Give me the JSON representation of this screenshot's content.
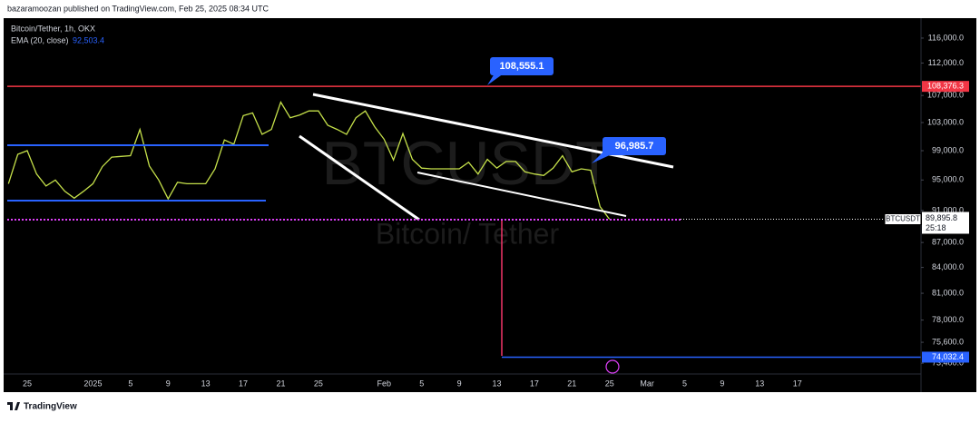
{
  "header": "bazaramoozan published on TradingView.com, Feb 25, 2025 08:34 UTC",
  "footer": "TradingView",
  "chart_data": {
    "type": "line",
    "symbol_title": "Bitcoin/Tether, 1h, OKX",
    "indicator": {
      "name": "EMA (20, close)",
      "value": {
        "value": 92503.4,
        "label": "92,503.4"
      }
    },
    "watermark": {
      "symbol": "BTCUSDT",
      "name": "Bitcoin/ Tether"
    },
    "log_scale": true,
    "grid": false,
    "ylim": [
      72300,
      119300
    ],
    "yticks": [
      {
        "value": 116000,
        "label": "116,000.0"
      },
      {
        "value": 112000,
        "label": "112,000.0"
      },
      {
        "value": 107000,
        "label": "107,000.0"
      },
      {
        "value": 103000,
        "label": "103,000.0"
      },
      {
        "value": 99000,
        "label": "99,000.0"
      },
      {
        "value": 95000,
        "label": "95,000.0"
      },
      {
        "value": 91000,
        "label": "91,000.0"
      },
      {
        "value": 87000,
        "label": "87,000.0"
      },
      {
        "value": 84000,
        "label": "84,000.0"
      },
      {
        "value": 81000,
        "label": "81,000.0"
      },
      {
        "value": 78000,
        "label": "78,000.0"
      },
      {
        "value": 75600,
        "label": "75,600.0"
      },
      {
        "value": 73400,
        "label": "73,400.0"
      }
    ],
    "categories": [
      null,
      null,
      "25",
      null,
      null,
      null,
      null,
      null,
      null,
      "2025",
      null,
      null,
      null,
      "5",
      null,
      null,
      null,
      "9",
      null,
      null,
      null,
      "13",
      null,
      null,
      null,
      "17",
      null,
      null,
      null,
      "21",
      null,
      null,
      null,
      "25",
      null,
      null,
      null,
      null,
      null,
      null,
      "Feb",
      null,
      null,
      null,
      "5",
      null,
      null,
      null,
      "9",
      null,
      null,
      null,
      "13",
      null,
      null,
      null,
      "17",
      null,
      null,
      null,
      "21",
      null,
      null,
      null,
      "25",
      null,
      null,
      null,
      "Mar",
      null,
      null,
      null,
      "5",
      null,
      null,
      null,
      "9",
      null,
      null,
      null,
      "13",
      null,
      null,
      null,
      "17",
      null,
      null,
      null,
      null,
      null,
      null,
      null,
      null,
      null,
      null,
      null,
      null,
      null
    ],
    "series": [
      {
        "name": "BTCUSDT",
        "color": "#c5e04a",
        "values": [
          94500,
          98500,
          99000,
          95800,
          94200,
          95000,
          93500,
          92600,
          93500,
          94500,
          96800,
          98100,
          98200,
          98300,
          102000,
          96900,
          95000,
          92500,
          94700,
          94500,
          94500,
          94500,
          96500,
          100500,
          99900,
          104000,
          104400,
          101300,
          102000,
          106000,
          103700,
          104100,
          104700,
          104700,
          102600,
          102000,
          101300,
          103700,
          104700,
          102400,
          100600,
          97700,
          101400,
          97800,
          96600,
          96500,
          96500,
          96500,
          96500,
          97400,
          95800,
          97800,
          96600,
          97500,
          97500,
          96100,
          95800,
          95600,
          96600,
          98300,
          96100,
          96500,
          96300,
          91500,
          89895.8,
          null,
          null,
          null,
          null,
          null,
          null,
          null,
          null,
          null,
          null,
          null,
          null,
          null,
          null,
          null,
          null,
          null,
          null,
          null,
          null,
          null,
          null,
          null,
          null,
          null,
          null,
          null,
          null,
          null,
          null,
          null,
          null,
          null
        ]
      }
    ],
    "levels": [
      {
        "value": 108376.3,
        "label": "108,376.3",
        "color": "#f23645"
      },
      {
        "value": 74032.4,
        "label": "74,032.4",
        "color": "#2962ff"
      }
    ],
    "callouts": [
      {
        "value": 108555.1,
        "label": "108,555.1",
        "color": "#2962ff"
      },
      {
        "value": 96985.7,
        "label": "96,985.7",
        "color": "#2962ff"
      }
    ],
    "last_price": {
      "symbol": "BTCUSDT",
      "value": 89895.8,
      "label": "89,895.8",
      "countdown": "25:18"
    }
  }
}
